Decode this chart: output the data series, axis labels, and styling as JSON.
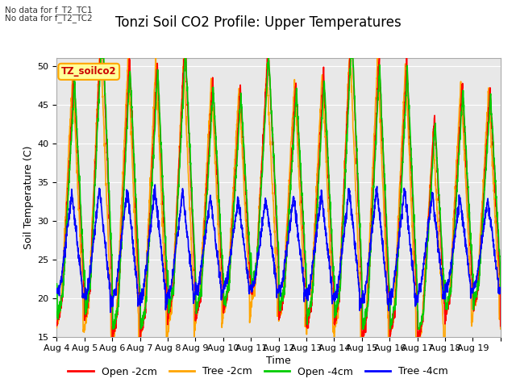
{
  "title": "Tonzi Soil CO2 Profile: Upper Temperatures",
  "xlabel": "Time",
  "ylabel": "Soil Temperature (C)",
  "ylim": [
    15,
    51
  ],
  "yticks": [
    15,
    20,
    25,
    30,
    35,
    40,
    45,
    50
  ],
  "xtick_labels": [
    "Aug 4",
    "Aug 5",
    "Aug 6",
    "Aug 7",
    "Aug 8",
    "Aug 9",
    "Aug 10",
    "Aug 11",
    "Aug 12",
    "Aug 13",
    "Aug 14",
    "Aug 15",
    "Aug 16",
    "Aug 17",
    "Aug 18",
    "Aug 19"
  ],
  "legend_labels": [
    "Open -2cm",
    "Tree -2cm",
    "Open -4cm",
    "Tree -4cm"
  ],
  "legend_colors": [
    "#ff0000",
    "#ffa500",
    "#00cc00",
    "#0000ff"
  ],
  "line_colors": [
    "#ff0000",
    "#ffa500",
    "#00cc00",
    "#0000ff"
  ],
  "annotation_text": "TZ_soilco2",
  "annotation_bg": "#ffff99",
  "annotation_border": "#ffa500",
  "no_data_text1": "No data for f_T2_TC1",
  "no_data_text2": "No data for f_T2_TC2",
  "plot_bg": "#e8e8e8",
  "fig_bg": "#ffffff",
  "title_fontsize": 12,
  "axis_label_fontsize": 9,
  "tick_fontsize": 8,
  "legend_fontsize": 9,
  "grid_color": "#d0d0d0"
}
